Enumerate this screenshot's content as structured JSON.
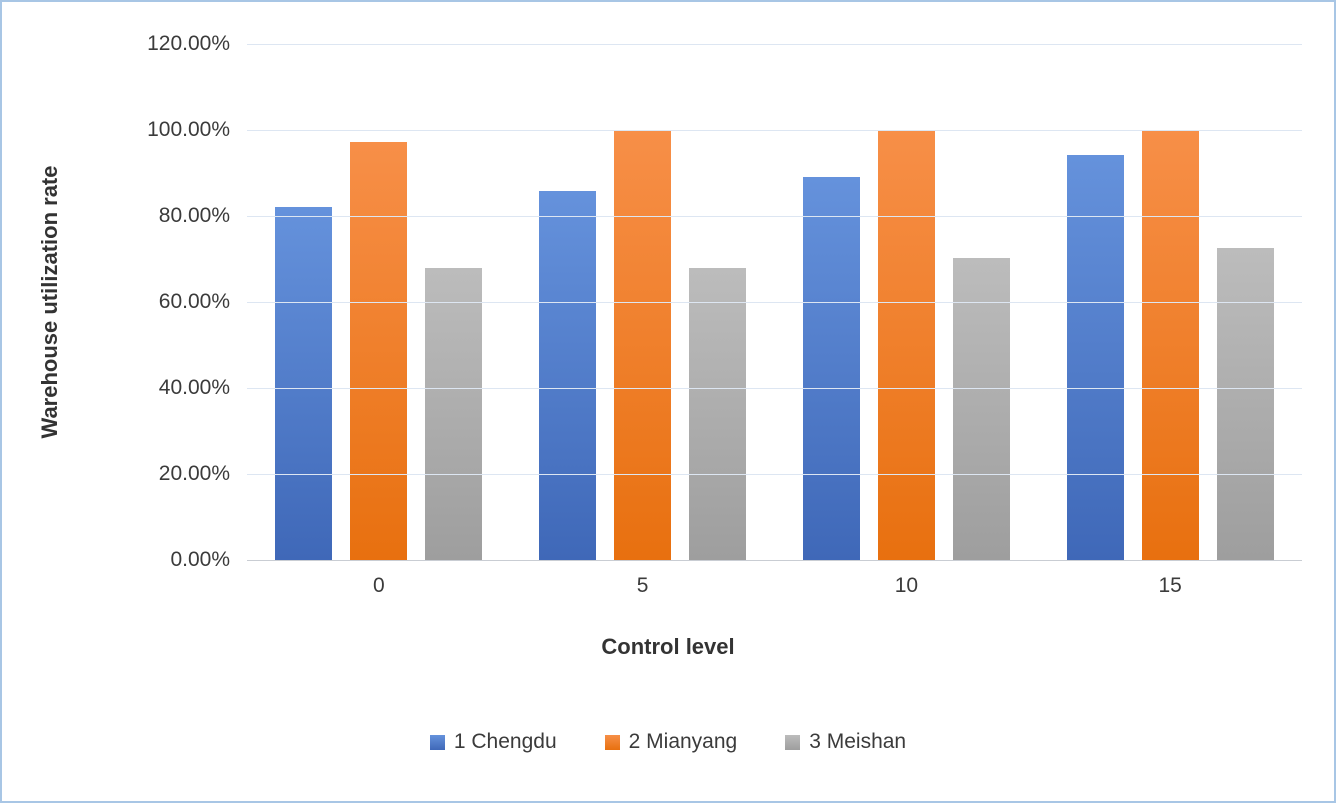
{
  "chart_data": {
    "type": "bar",
    "categories": [
      "0",
      "5",
      "10",
      "15"
    ],
    "series": [
      {
        "name": "1 Chengdu",
        "values": [
          82.0,
          85.8,
          89.0,
          94.3
        ],
        "color": "#3f68b8",
        "color_light": "#6592dc"
      },
      {
        "name": "2 Mianyang",
        "values": [
          97.2,
          100.0,
          100.0,
          100.0
        ],
        "color": "#e8700f",
        "color_light": "#f78f48"
      },
      {
        "name": "3 Meishan",
        "values": [
          67.8,
          67.8,
          70.2,
          72.5
        ],
        "color": "#9e9e9e",
        "color_light": "#bcbcbc"
      }
    ],
    "title": "",
    "xlabel": "Control level",
    "ylabel": "Warehouse utilization rate",
    "ylim": [
      0,
      120
    ],
    "yticks": [
      {
        "value": 0,
        "label": "0.00%"
      },
      {
        "value": 20,
        "label": "20.00%"
      },
      {
        "value": 40,
        "label": "40.00%"
      },
      {
        "value": 60,
        "label": "60.00%"
      },
      {
        "value": 80,
        "label": "80.00%"
      },
      {
        "value": 100,
        "label": "100.00%"
      },
      {
        "value": 120,
        "label": "120.00%"
      }
    ],
    "grid": true,
    "legend_position": "bottom",
    "gridline_color": "#dde6f2",
    "axis_line_color": "#c9cdd3",
    "border_color": "#a8c6e5"
  }
}
